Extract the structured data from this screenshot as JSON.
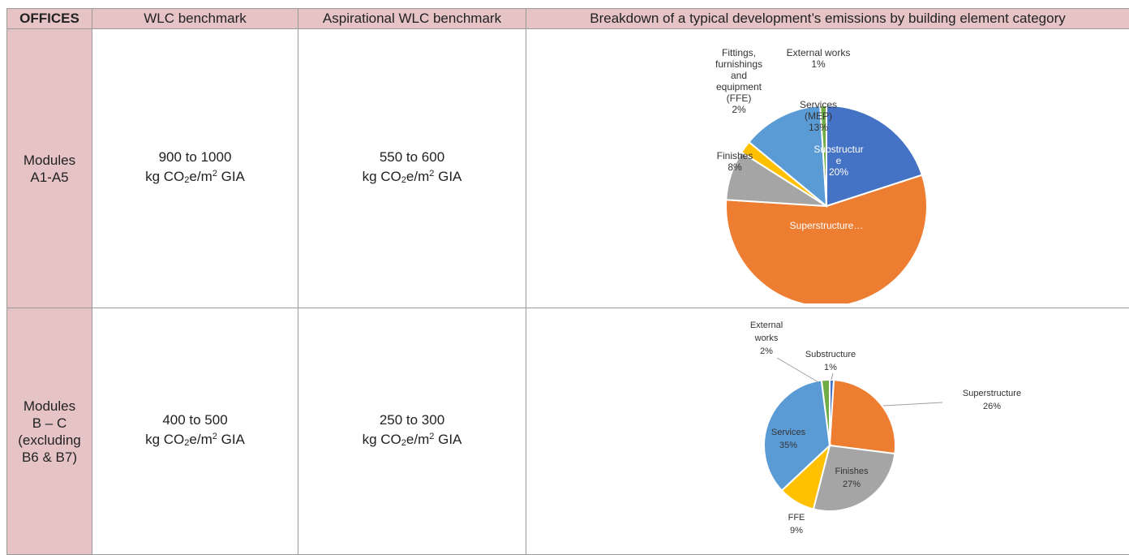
{
  "header": {
    "col1": "OFFICES",
    "col2": "WLC benchmark",
    "col3": "Aspirational WLC benchmark",
    "col4": "Breakdown of a typical development’s emissions by building element category"
  },
  "rows": [
    {
      "label_lines": [
        "Modules",
        "A1-A5"
      ],
      "wlc_range": "900 to 1000",
      "wlc_unit": {
        "pre": "kg CO",
        "sub": "2",
        "mid": "e/m",
        "sup": "2",
        "post": " GIA"
      },
      "asp_range": "550 to 600",
      "asp_unit": {
        "pre": "kg CO",
        "sub": "2",
        "mid": "e/m",
        "sup": "2",
        "post": " GIA"
      }
    },
    {
      "label_lines": [
        "Modules",
        "B – C",
        "(excluding",
        "B6 & B7)"
      ],
      "wlc_range": "400 to 500",
      "wlc_unit": {
        "pre": "kg CO",
        "sub": "2",
        "mid": "e/m",
        "sup": "2",
        "post": " GIA"
      },
      "asp_range": "250 to 300",
      "asp_unit": {
        "pre": "kg CO",
        "sub": "2",
        "mid": "e/m",
        "sup": "2",
        "post": " GIA"
      }
    }
  ],
  "chart_data": [
    {
      "type": "pie",
      "slices": [
        {
          "name": "Substructure",
          "value": 20,
          "color": "#4472c4"
        },
        {
          "name": "Superstructure",
          "value": 56,
          "color": "#ed7d31"
        },
        {
          "name": "Finishes",
          "value": 8,
          "color": "#a5a5a5"
        },
        {
          "name": "Fittings, furnishings and equipment (FFE)",
          "value": 2,
          "color": "#ffc000"
        },
        {
          "name": "Services (MEP)",
          "value": 13,
          "color": "#5b9bd5"
        },
        {
          "name": "External works",
          "value": 1,
          "color": "#70ad47"
        }
      ],
      "labels": [
        {
          "lines": [
            "Substructur",
            "e",
            "20%"
          ],
          "color": "#ffffff"
        },
        {
          "lines": [
            "Superstructure…"
          ],
          "color": "#ffffff"
        },
        {
          "lines": [
            "Finishes",
            "8%"
          ],
          "color": "#333333"
        },
        {
          "lines": [
            "Fittings,",
            "furnishings",
            "and",
            "equipment",
            "(FFE)",
            "2%"
          ],
          "color": "#333333"
        },
        {
          "lines": [
            "Services",
            "(MEP)",
            "13%"
          ],
          "color": "#333333"
        },
        {
          "lines": [
            "External works",
            "1%"
          ],
          "color": "#333333"
        }
      ]
    },
    {
      "type": "pie",
      "slices": [
        {
          "name": "Substructure",
          "value": 1,
          "color": "#4472c4"
        },
        {
          "name": "Superstructure",
          "value": 26,
          "color": "#ed7d31"
        },
        {
          "name": "Finishes",
          "value": 27,
          "color": "#a5a5a5"
        },
        {
          "name": "FFE",
          "value": 9,
          "color": "#ffc000"
        },
        {
          "name": "Services",
          "value": 35,
          "color": "#5b9bd5"
        },
        {
          "name": "External works",
          "value": 2,
          "color": "#70ad47"
        }
      ],
      "labels": [
        {
          "lines": [
            "Substructure",
            "1%"
          ],
          "color": "#333333"
        },
        {
          "lines": [
            "Superstructure",
            "26%"
          ],
          "color": "#333333"
        },
        {
          "lines": [
            "Finishes",
            "27%"
          ],
          "color": "#333333"
        },
        {
          "lines": [
            "FFE",
            "9%"
          ],
          "color": "#333333"
        },
        {
          "lines": [
            "Services",
            "35%"
          ],
          "color": "#333333"
        },
        {
          "lines": [
            "External",
            "works",
            "2%"
          ],
          "color": "#333333"
        }
      ]
    }
  ]
}
